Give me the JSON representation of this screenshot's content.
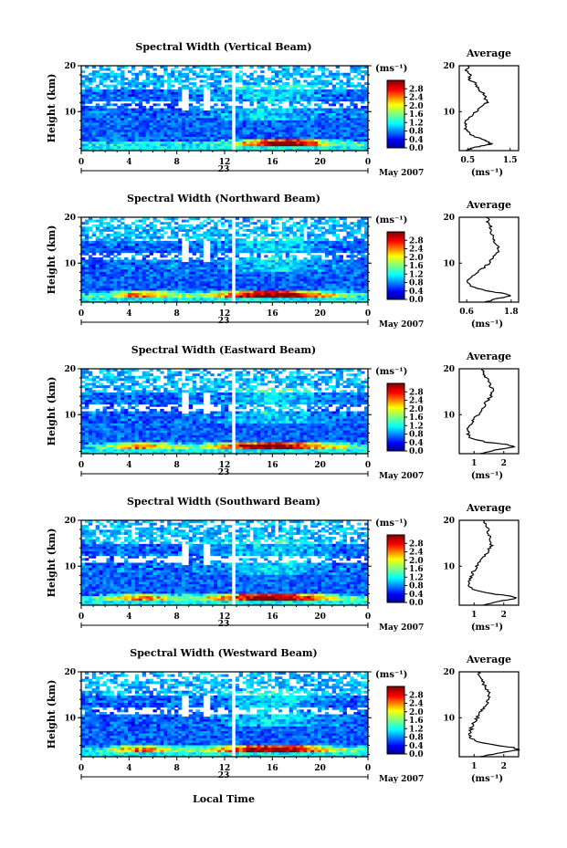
{
  "figure": {
    "month_label": "May 2007",
    "date_label": "23",
    "xlabel": "Local Time",
    "ylabel": "Height (km)",
    "colorbar_unit": "(ms⁻¹)",
    "avg_title": "Average",
    "avg_xlabel": "(ms⁻¹)"
  },
  "chart_data": [
    {
      "type": "heatmap",
      "title": "Spectral Width (Vertical Beam)",
      "x_ticks": [
        "0",
        "4",
        "8",
        "12",
        "16",
        "20",
        "0"
      ],
      "xlim": [
        0,
        24
      ],
      "y_ticks": [
        "10",
        "20"
      ],
      "ylim": [
        1.5,
        20
      ],
      "colorbar_ticks": [
        "0.0",
        "0.4",
        "0.8",
        "1.2",
        "1.6",
        "2.0",
        "2.4",
        "2.8"
      ],
      "colorbar_range": [
        0,
        3.2
      ],
      "seed": 11,
      "average": {
        "x_ticks": [
          "0.5",
          "1.5"
        ],
        "xlim": [
          0.3,
          1.7
        ],
        "profile": [
          [
            20,
            0.52
          ],
          [
            19,
            0.48
          ],
          [
            18,
            0.57
          ],
          [
            17,
            0.54
          ],
          [
            16,
            0.7
          ],
          [
            15,
            0.74
          ],
          [
            14,
            0.86
          ],
          [
            13,
            0.92
          ],
          [
            12,
            0.96
          ],
          [
            11,
            0.82
          ],
          [
            10,
            0.68
          ],
          [
            9,
            0.58
          ],
          [
            8,
            0.48
          ],
          [
            7,
            0.42
          ],
          [
            6,
            0.46
          ],
          [
            5,
            0.55
          ],
          [
            4,
            0.82
          ],
          [
            3.5,
            0.95
          ],
          [
            3,
            1.05
          ],
          [
            2.5,
            0.8
          ],
          [
            2,
            0.6
          ],
          [
            1.5,
            0.45
          ]
        ]
      }
    },
    {
      "type": "heatmap",
      "title": "Spectral Width (Northward Beam)",
      "x_ticks": [
        "0",
        "4",
        "8",
        "12",
        "16",
        "20",
        "0"
      ],
      "xlim": [
        0,
        24
      ],
      "y_ticks": [
        "10",
        "20"
      ],
      "ylim": [
        1.5,
        20
      ],
      "colorbar_ticks": [
        "0.0",
        "0.4",
        "0.8",
        "1.2",
        "1.6",
        "2.0",
        "2.4",
        "2.8"
      ],
      "colorbar_range": [
        0,
        3.2
      ],
      "seed": 23,
      "average": {
        "x_ticks": [
          "0.6",
          "1.8"
        ],
        "xlim": [
          0.4,
          2.0
        ],
        "profile": [
          [
            20,
            1.15
          ],
          [
            19,
            1.18
          ],
          [
            18,
            1.25
          ],
          [
            17,
            1.22
          ],
          [
            16,
            1.28
          ],
          [
            15,
            1.32
          ],
          [
            14,
            1.42
          ],
          [
            13,
            1.48
          ],
          [
            12,
            1.4
          ],
          [
            11,
            1.3
          ],
          [
            10,
            1.2
          ],
          [
            9,
            1.05
          ],
          [
            8,
            0.9
          ],
          [
            7,
            0.75
          ],
          [
            6,
            0.62
          ],
          [
            5,
            0.72
          ],
          [
            4,
            1.1
          ],
          [
            3.5,
            1.5
          ],
          [
            3,
            1.8
          ],
          [
            2.5,
            1.55
          ],
          [
            2,
            1.3
          ],
          [
            1.5,
            1.1
          ]
        ]
      }
    },
    {
      "type": "heatmap",
      "title": "Spectral Width (Eastward Beam)",
      "x_ticks": [
        "0",
        "4",
        "8",
        "12",
        "16",
        "20",
        "0"
      ],
      "xlim": [
        0,
        24
      ],
      "y_ticks": [
        "10",
        "20"
      ],
      "ylim": [
        1.5,
        20
      ],
      "colorbar_ticks": [
        "0.0",
        "0.4",
        "0.8",
        "1.2",
        "1.6",
        "2.0",
        "2.4",
        "2.8"
      ],
      "colorbar_range": [
        0,
        3.2
      ],
      "seed": 37,
      "average": {
        "x_ticks": [
          "1",
          "2"
        ],
        "xlim": [
          0.5,
          2.5
        ],
        "profile": [
          [
            20,
            1.3
          ],
          [
            19,
            1.35
          ],
          [
            18,
            1.4
          ],
          [
            17,
            1.5
          ],
          [
            16,
            1.58
          ],
          [
            15,
            1.62
          ],
          [
            14,
            1.55
          ],
          [
            13,
            1.45
          ],
          [
            12,
            1.35
          ],
          [
            11,
            1.25
          ],
          [
            10,
            1.12
          ],
          [
            9,
            1.0
          ],
          [
            8,
            0.9
          ],
          [
            7,
            0.82
          ],
          [
            6,
            0.78
          ],
          [
            5,
            0.85
          ],
          [
            4,
            1.4
          ],
          [
            3.5,
            2.1
          ],
          [
            3,
            2.4
          ],
          [
            2.5,
            1.9
          ],
          [
            2,
            1.5
          ],
          [
            1.5,
            1.2
          ]
        ]
      }
    },
    {
      "type": "heatmap",
      "title": "Spectral Width (Southward Beam)",
      "x_ticks": [
        "0",
        "4",
        "8",
        "12",
        "16",
        "20",
        "0"
      ],
      "xlim": [
        0,
        24
      ],
      "y_ticks": [
        "10",
        "20"
      ],
      "ylim": [
        1.5,
        20
      ],
      "colorbar_ticks": [
        "0.0",
        "0.4",
        "0.8",
        "1.2",
        "1.6",
        "2.0",
        "2.4",
        "2.8"
      ],
      "colorbar_range": [
        0,
        3.2
      ],
      "seed": 51,
      "average": {
        "x_ticks": [
          "1",
          "2"
        ],
        "xlim": [
          0.5,
          2.5
        ],
        "profile": [
          [
            20,
            1.35
          ],
          [
            19,
            1.38
          ],
          [
            18,
            1.45
          ],
          [
            17,
            1.5
          ],
          [
            16,
            1.55
          ],
          [
            15,
            1.6
          ],
          [
            14,
            1.55
          ],
          [
            13,
            1.45
          ],
          [
            12,
            1.32
          ],
          [
            11,
            1.2
          ],
          [
            10,
            1.08
          ],
          [
            9,
            0.98
          ],
          [
            8,
            0.9
          ],
          [
            7,
            0.85
          ],
          [
            6,
            0.82
          ],
          [
            5,
            0.95
          ],
          [
            4,
            1.6
          ],
          [
            3.5,
            2.2
          ],
          [
            3,
            2.45
          ],
          [
            2.5,
            2.0
          ],
          [
            2,
            1.6
          ],
          [
            1.5,
            1.3
          ]
        ]
      }
    },
    {
      "type": "heatmap",
      "title": "Spectral Width (Westward Beam)",
      "x_ticks": [
        "0",
        "4",
        "8",
        "12",
        "16",
        "20",
        "0"
      ],
      "xlim": [
        0,
        24
      ],
      "y_ticks": [
        "10",
        "20"
      ],
      "ylim": [
        1.5,
        20
      ],
      "colorbar_ticks": [
        "0.0",
        "0.4",
        "0.8",
        "1.2",
        "1.6",
        "2.0",
        "2.4",
        "2.8"
      ],
      "colorbar_range": [
        0,
        3.2
      ],
      "seed": 67,
      "average": {
        "x_ticks": [
          "1",
          "2"
        ],
        "xlim": [
          0.5,
          2.5
        ],
        "profile": [
          [
            20,
            1.15
          ],
          [
            19,
            1.2
          ],
          [
            18,
            1.3
          ],
          [
            17,
            1.35
          ],
          [
            16,
            1.45
          ],
          [
            15,
            1.52
          ],
          [
            14,
            1.5
          ],
          [
            13,
            1.42
          ],
          [
            12,
            1.32
          ],
          [
            11,
            1.2
          ],
          [
            10,
            1.1
          ],
          [
            9,
            1.0
          ],
          [
            8,
            0.92
          ],
          [
            7,
            0.88
          ],
          [
            6,
            0.85
          ],
          [
            5,
            1.0
          ],
          [
            4,
            1.7
          ],
          [
            3.5,
            2.3
          ],
          [
            3,
            2.5
          ],
          [
            2.5,
            2.0
          ],
          [
            2,
            1.6
          ],
          [
            1.5,
            1.2
          ]
        ]
      }
    }
  ]
}
